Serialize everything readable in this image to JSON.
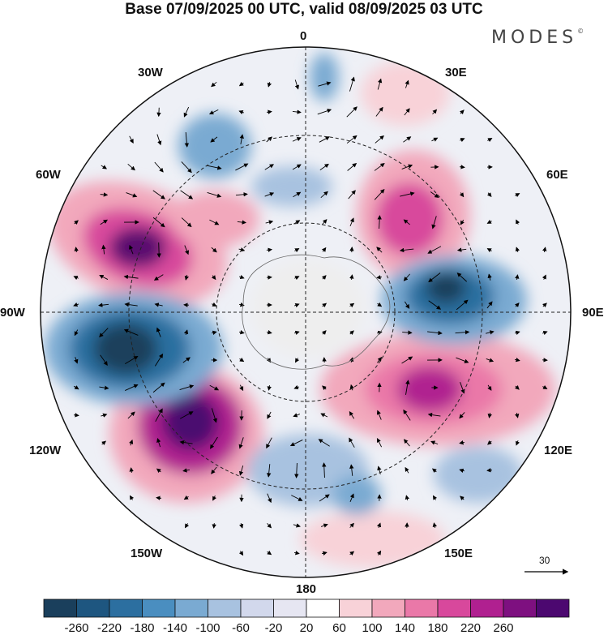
{
  "header": {
    "title": "Base 07/09/2025 00 UTC, valid 08/09/2025 03 UTC",
    "brand": "MODES",
    "brand_mark": "©"
  },
  "map": {
    "projection": "south-polar-stereographic",
    "longitude_labels": {
      "top": "0",
      "top_right": "30E",
      "right_upper": "60E",
      "right": "90E",
      "right_lower": "120E",
      "bottom_right": "150E",
      "bottom": "180",
      "bottom_left": "150W",
      "left_lower": "120W",
      "left": "90W",
      "left_upper": "60W",
      "top_left": "30W"
    },
    "reference_vector": "30"
  },
  "colorbar": {
    "ticks": [
      "-260",
      "-220",
      "-180",
      "-140",
      "-100",
      "-60",
      "-20",
      "20",
      "60",
      "100",
      "140",
      "180",
      "220",
      "260"
    ],
    "colors": [
      "#1a3f5c",
      "#1e5680",
      "#2c6fa0",
      "#4a8ec0",
      "#7aaad2",
      "#a8c2e0",
      "#d2d8ec",
      "#e6e6f2",
      "#ffffff",
      "#f8d2d8",
      "#f2a8bc",
      "#ea78a8",
      "#d8489c",
      "#b02090",
      "#7e1080",
      "#4c0870"
    ]
  }
}
